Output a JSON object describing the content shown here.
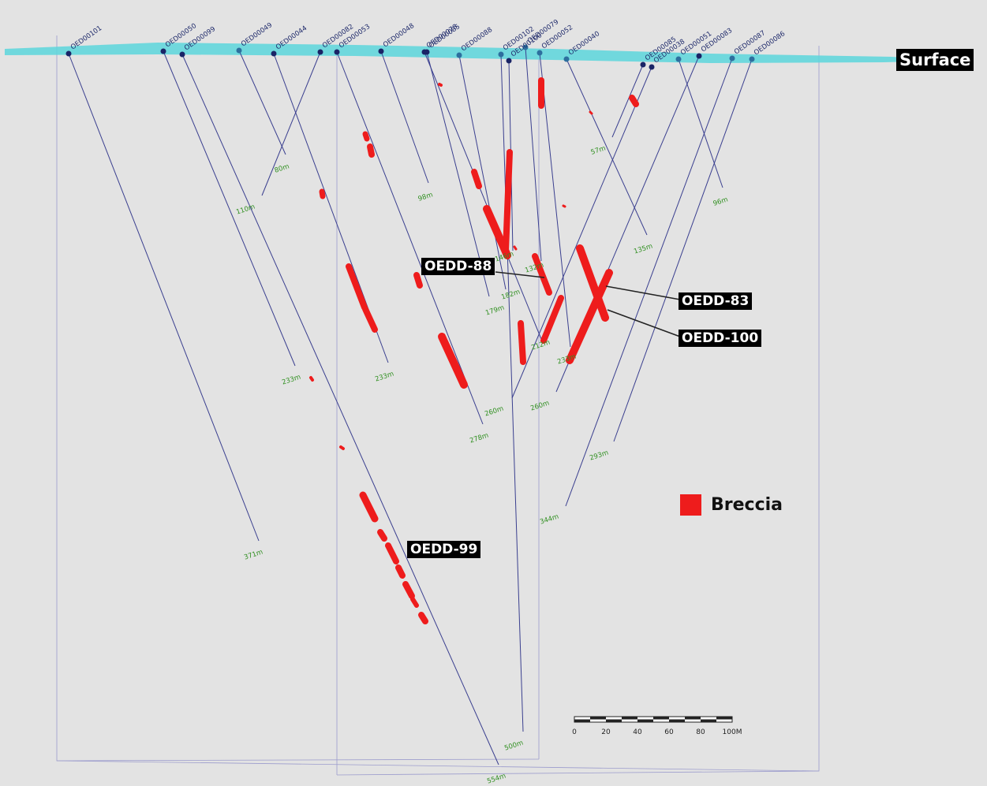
{
  "surface_label": "Surface",
  "legend": {
    "label": "Breccia",
    "color": "#ee1c1c"
  },
  "callouts": {
    "oedd88": "OEDD-88",
    "oedd83": "OEDD-83",
    "oedd100": "OEDD-100",
    "oedd99": "OEDD-99"
  },
  "colors": {
    "surface": "#5cd6dc",
    "trace": "#3a3f8f",
    "breccia": "#ee1c1c",
    "depth_text": "#2f8f1f",
    "frame": "#9c9ccd"
  },
  "scale_bar": {
    "ticks": [
      "0",
      "20",
      "40",
      "60",
      "80",
      "100M"
    ]
  },
  "holes": [
    {
      "id": "OED00101",
      "depth": "371m"
    },
    {
      "id": "OED00050",
      "depth": "233m"
    },
    {
      "id": "OED00099",
      "depth": "554m"
    },
    {
      "id": "OED00049",
      "depth": "80m"
    },
    {
      "id": "OED00044",
      "depth": "233m"
    },
    {
      "id": "OED00082",
      "depth": "110m"
    },
    {
      "id": "OED00053",
      "depth": "278m"
    },
    {
      "id": "OED00048",
      "depth": "98m"
    },
    {
      "id": "OED00078",
      "depth": "212m"
    },
    {
      "id": "OED00085",
      "depth": "179m"
    },
    {
      "id": "OED00088",
      "depth": "182m"
    },
    {
      "id": "OED00102",
      "depth": "500m"
    },
    {
      "id": "OED00100",
      "depth": "146m"
    },
    {
      "id": "OED00079",
      "depth": "132m"
    },
    {
      "id": "OED00052",
      "depth": "233m"
    },
    {
      "id": "OED00040",
      "depth": "135m"
    },
    {
      "id": "OED00085",
      "depth": "57m"
    },
    {
      "id": "OED00038",
      "depth": "260m"
    },
    {
      "id": "OED00051",
      "depth": "96m"
    },
    {
      "id": "OED00083",
      "depth": "260m"
    },
    {
      "id": "OED00087",
      "depth": "344m"
    },
    {
      "id": "OED00086",
      "depth": "293m"
    }
  ]
}
